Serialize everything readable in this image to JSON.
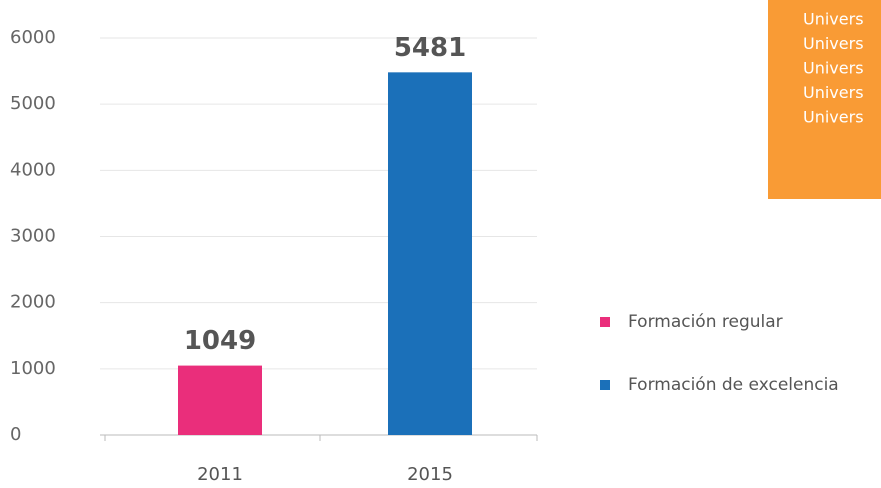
{
  "chart_data": {
    "type": "bar",
    "categories": [
      "2011",
      "2015"
    ],
    "series": [
      {
        "name": "Formación regular",
        "color": "#ea2e7b",
        "values": [
          1049,
          null
        ]
      },
      {
        "name": "Formación de excelencia",
        "color": "#1b70b9",
        "values": [
          null,
          5481
        ]
      }
    ],
    "ylim": [
      0,
      6000
    ],
    "yticks": [
      0,
      1000,
      2000,
      3000,
      4000,
      5000,
      6000
    ],
    "grid": true,
    "legend": "right",
    "annotations": [
      "Univers",
      "Univers",
      "Univers",
      "Univers",
      "Univers"
    ],
    "annotation_color": "#f99b35"
  }
}
